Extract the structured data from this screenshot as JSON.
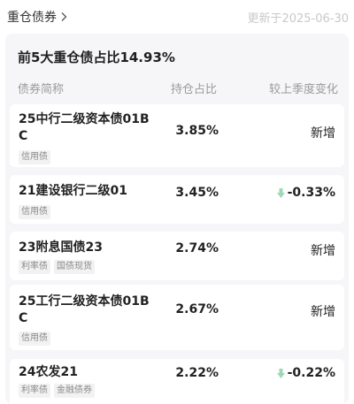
{
  "header": {
    "section_label": "重仓债券",
    "updated_text": "更新于2025-06-30"
  },
  "card": {
    "title": "前5大重仓债占比14.93%",
    "columns": {
      "name": "债券简称",
      "share": "持仓占比",
      "change": "较上季度变化"
    }
  },
  "holdings": [
    {
      "name": "25中行二级资本债01BC",
      "tags": [
        "信用债"
      ],
      "share": "3.85%",
      "change": "新增",
      "change_dir": "new"
    },
    {
      "name": "21建设银行二级01",
      "tags": [
        "信用债"
      ],
      "share": "3.45%",
      "change": "-0.33%",
      "change_dir": "down"
    },
    {
      "name": "23附息国债23",
      "tags": [
        "利率债",
        "国债现货"
      ],
      "share": "2.74%",
      "change": "新增",
      "change_dir": "new"
    },
    {
      "name": "25工行二级资本债01BC",
      "tags": [
        "信用债"
      ],
      "share": "2.67%",
      "change": "新增",
      "change_dir": "new"
    },
    {
      "name": "24农发21",
      "tags": [
        "利率债",
        "金融债券"
      ],
      "share": "2.22%",
      "change": "-0.22%",
      "change_dir": "down"
    }
  ],
  "colors": {
    "down_arrow": "#9fd8b4",
    "muted": "#9a9a9a",
    "card_bg": "#f6f6f8"
  },
  "icons": {
    "section_link": "chevron-right-icon",
    "decrease": "arrow-down-icon"
  }
}
